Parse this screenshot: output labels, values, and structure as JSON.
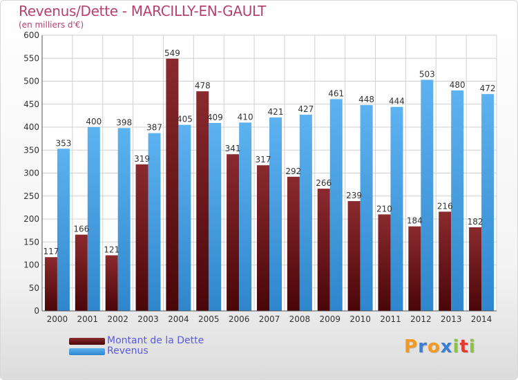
{
  "header": {
    "title": "Revenus/Dette - MARCILLY-EN-GAULT",
    "subtitle": "(en milliers d'€)"
  },
  "legend": {
    "debt_label": "Montant de la Dette",
    "revenue_label": "Revenus"
  },
  "logo": {
    "letters": [
      "P",
      "r",
      "o",
      "x",
      "i",
      "t",
      "i"
    ],
    "colors": [
      "#f29a1f",
      "#3a7fd5",
      "#f29a1f",
      "#3a7fd5",
      "#8bc53f",
      "#e63a2e",
      "#8bc53f"
    ]
  },
  "colors": {
    "debt": "#7a1e22",
    "revenue": "#4aa3e6",
    "title": "#b5426e",
    "legend_text": "#5a5adc"
  },
  "chart_data": {
    "type": "bar",
    "title": "Revenus/Dette - MARCILLY-EN-GAULT",
    "subtitle": "(en milliers d'€)",
    "categories": [
      "2000",
      "2001",
      "2002",
      "2003",
      "2004",
      "2005",
      "2006",
      "2007",
      "2008",
      "2009",
      "2010",
      "2011",
      "2012",
      "2013",
      "2014"
    ],
    "series": [
      {
        "name": "Montant de la Dette",
        "values": [
          117,
          166,
          121,
          319,
          549,
          478,
          341,
          317,
          292,
          266,
          239,
          210,
          184,
          216,
          182
        ]
      },
      {
        "name": "Revenus",
        "values": [
          353,
          400,
          398,
          387,
          405,
          409,
          410,
          421,
          427,
          461,
          448,
          444,
          503,
          480,
          472
        ]
      }
    ],
    "yticks": [
      0,
      50,
      100,
      150,
      200,
      250,
      300,
      350,
      400,
      450,
      500,
      550,
      600
    ],
    "ylim": [
      0,
      600
    ],
    "grid": true,
    "legend_position": "bottom-left"
  }
}
